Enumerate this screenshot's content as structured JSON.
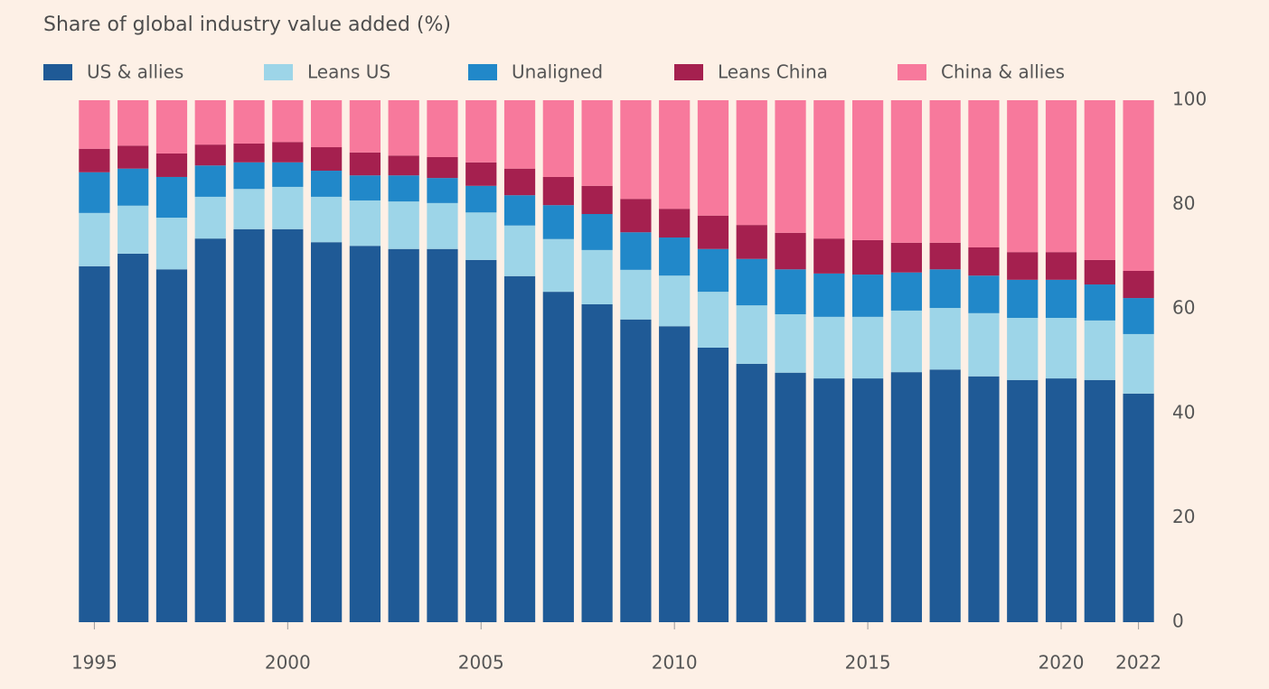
{
  "chart_data": {
    "type": "stacked_bar",
    "title": "Share of global industry value added (%)",
    "categories": [
      "1995",
      null,
      null,
      null,
      null,
      "2000",
      null,
      null,
      null,
      null,
      "2005",
      null,
      null,
      null,
      null,
      "2010",
      null,
      null,
      null,
      null,
      "2015",
      null,
      null,
      null,
      null,
      "2020",
      null,
      "2022"
    ],
    "series": [
      {
        "name": "US & allies",
        "color": "#1f5a96",
        "values": [
          68.2,
          70.6,
          67.6,
          73.5,
          75.3,
          75.3,
          72.8,
          72.1,
          71.5,
          71.5,
          69.4,
          66.3,
          63.3,
          60.9,
          58.0,
          56.7,
          52.6,
          49.5,
          47.8,
          46.7,
          46.7,
          47.9,
          48.4,
          47.1,
          46.4,
          46.7,
          46.4,
          43.8
        ]
      },
      {
        "name": "Leans US",
        "color": "#9dd5e8",
        "values": [
          10.2,
          9.2,
          9.9,
          8.0,
          7.7,
          8.1,
          8.7,
          8.7,
          9.1,
          8.8,
          9.1,
          9.7,
          10.1,
          10.4,
          9.5,
          9.7,
          10.7,
          11.2,
          11.2,
          11.8,
          11.8,
          11.8,
          11.8,
          12.1,
          11.9,
          11.6,
          11.4,
          11.4
        ]
      },
      {
        "name": "Unaligned",
        "color": "#2188c9",
        "values": [
          7.8,
          7.1,
          7.8,
          6.0,
          5.1,
          4.7,
          5.0,
          4.8,
          5.0,
          4.8,
          5.1,
          5.8,
          6.5,
          6.9,
          7.2,
          7.3,
          8.2,
          8.9,
          8.6,
          8.3,
          8.1,
          7.3,
          7.4,
          7.2,
          7.3,
          7.3,
          6.9,
          6.9
        ]
      },
      {
        "name": "Leans China",
        "color": "#a5204f",
        "values": [
          4.5,
          4.4,
          4.5,
          4.0,
          3.6,
          3.9,
          4.5,
          4.4,
          3.8,
          4.0,
          4.5,
          5.1,
          5.4,
          5.4,
          6.4,
          5.5,
          6.4,
          6.5,
          7.0,
          6.7,
          6.6,
          5.7,
          5.1,
          5.4,
          5.3,
          5.3,
          4.7,
          5.2
        ]
      },
      {
        "name": "China & allies",
        "color": "#f7799c",
        "values": [
          9.3,
          8.7,
          10.2,
          8.5,
          8.3,
          8.0,
          9.0,
          10.0,
          10.6,
          10.9,
          11.9,
          13.1,
          14.7,
          16.4,
          18.9,
          20.8,
          22.1,
          23.9,
          25.4,
          26.5,
          26.8,
          27.3,
          27.3,
          28.2,
          29.1,
          29.1,
          30.6,
          32.7
        ]
      }
    ],
    "ylim": [
      0,
      100
    ],
    "yticks": [
      0,
      20,
      40,
      60,
      80,
      100
    ],
    "y_axis_side": "right",
    "grid": false,
    "legend": "top"
  }
}
